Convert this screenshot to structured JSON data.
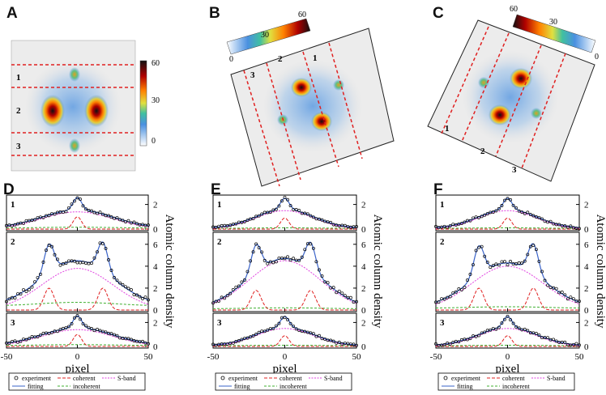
{
  "panel_letters": [
    "A",
    "B",
    "C",
    "D",
    "E",
    "F"
  ],
  "colorbar": {
    "ticks": [
      "60",
      "30",
      "0"
    ]
  },
  "region_numbers": [
    "1",
    "2",
    "3"
  ],
  "axes": {
    "xlabel": "pixel",
    "ylabel": "Atomic column density",
    "xticks": [
      "-50",
      "0",
      "50"
    ],
    "yticks_small": [
      "2",
      "0"
    ],
    "yticks_big": [
      "6",
      "4",
      "2",
      "0"
    ]
  },
  "legend": {
    "experiment": "experiment",
    "coherent": "coherent",
    "sband": "S-band",
    "fitting": "fitting",
    "incoherent": "incoherent"
  },
  "colors": {
    "experiment": "#000000",
    "fitting": "#3a63c9",
    "coherent": "#e02020",
    "sband": "#e040e0",
    "incoherent": "#40b030",
    "cut_line": "#e02020"
  },
  "chart_data": [
    {
      "type": "line",
      "panel": "D",
      "xlim": [
        -50,
        50
      ],
      "xlabel": "pixel",
      "ylabel": "Atomic column density",
      "rows": [
        {
          "label": "1",
          "ylim": [
            0,
            2.5
          ],
          "coherent": {
            "center": 0,
            "sigma": 3,
            "amp": 1.0
          },
          "sband": {
            "amp": 1.4,
            "sigma": 25
          },
          "incoherent": 0.15
        },
        {
          "label": "2",
          "ylim": [
            0,
            6.8
          ],
          "coherent": {
            "centers": [
              -20,
              18
            ],
            "sigma": 3.5,
            "amp": 2.0
          },
          "sband": {
            "amp": 3.8,
            "sigma": 25
          },
          "incoherent": 0.7,
          "peaks": 6.1
        },
        {
          "label": "3",
          "ylim": [
            0,
            2.5
          ],
          "coherent": {
            "center": 0,
            "sigma": 3,
            "amp": 1.0
          },
          "sband": {
            "amp": 1.4,
            "sigma": 25
          },
          "incoherent": 0.15
        }
      ]
    },
    {
      "type": "line",
      "panel": "E",
      "xlim": [
        -50,
        50
      ],
      "xlabel": "pixel",
      "ylabel": "Atomic column density",
      "rows": [
        {
          "label": "1",
          "ylim": [
            0,
            2.5
          ],
          "coherent": {
            "center": 0,
            "sigma": 3,
            "amp": 0.9
          },
          "sband": {
            "amp": 1.5,
            "sigma": 20
          },
          "incoherent": 0.1
        },
        {
          "label": "2",
          "ylim": [
            0,
            6.8
          ],
          "coherent": {
            "centers": [
              -20,
              18
            ],
            "sigma": 3.5,
            "amp": 1.8
          },
          "sband": {
            "amp": 4.5,
            "sigma": 25
          },
          "incoherent": 0.2,
          "peaks": 6.0
        },
        {
          "label": "3",
          "ylim": [
            0,
            2.5
          ],
          "coherent": {
            "center": 0,
            "sigma": 3,
            "amp": 0.9
          },
          "sband": {
            "amp": 1.5,
            "sigma": 20
          },
          "incoherent": 0.1
        }
      ]
    },
    {
      "type": "line",
      "panel": "F",
      "xlim": [
        -50,
        50
      ],
      "xlabel": "pixel",
      "ylabel": "Atomic column density",
      "rows": [
        {
          "label": "1",
          "ylim": [
            0,
            2.5
          ],
          "coherent": {
            "center": 0,
            "sigma": 3,
            "amp": 0.9
          },
          "sband": {
            "amp": 1.5,
            "sigma": 20
          },
          "incoherent": 0.1
        },
        {
          "label": "2",
          "ylim": [
            0,
            6.8
          ],
          "coherent": {
            "centers": [
              -20,
              18
            ],
            "sigma": 3.5,
            "amp": 2.0
          },
          "sband": {
            "amp": 4.0,
            "sigma": 25
          },
          "incoherent": 0.3,
          "peaks": 5.9
        },
        {
          "label": "3",
          "ylim": [
            0,
            2.5
          ],
          "coherent": {
            "center": 0,
            "sigma": 3,
            "amp": 0.9
          },
          "sband": {
            "amp": 1.5,
            "sigma": 20
          },
          "incoherent": 0.1
        }
      ]
    }
  ]
}
